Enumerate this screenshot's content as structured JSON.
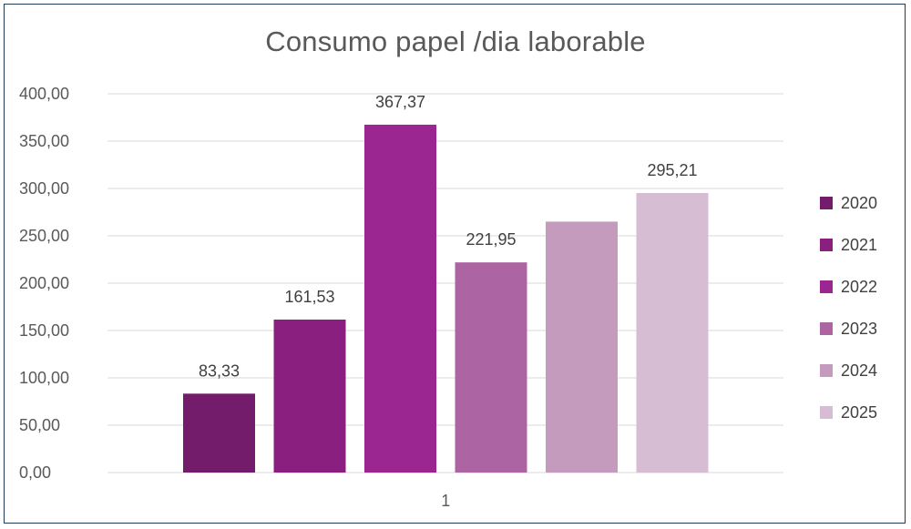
{
  "chart_data": {
    "type": "bar",
    "title": "Consumo papel /dia laborable",
    "categories": [
      "1"
    ],
    "y_ticks": [
      "0,00",
      "50,00",
      "100,00",
      "150,00",
      "200,00",
      "250,00",
      "300,00",
      "350,00",
      "400,00"
    ],
    "ylim": [
      0,
      400
    ],
    "grid": true,
    "legend_position": "right",
    "series": [
      {
        "name": "2020",
        "value": 83.33,
        "label": "83,33",
        "color": "#731c6b"
      },
      {
        "name": "2021",
        "value": 161.53,
        "label": "161,53",
        "color": "#8b1f80"
      },
      {
        "name": "2022",
        "value": 367.37,
        "label": "367,37",
        "color": "#9b2692"
      },
      {
        "name": "2023",
        "value": 221.95,
        "label": "221,95",
        "color": "#ac64a2"
      },
      {
        "name": "2024",
        "value": 265.0,
        "label": "",
        "color": "#c49abd"
      },
      {
        "name": "2025",
        "value": 295.21,
        "label": "295,21",
        "color": "#d7bdd3"
      }
    ]
  }
}
